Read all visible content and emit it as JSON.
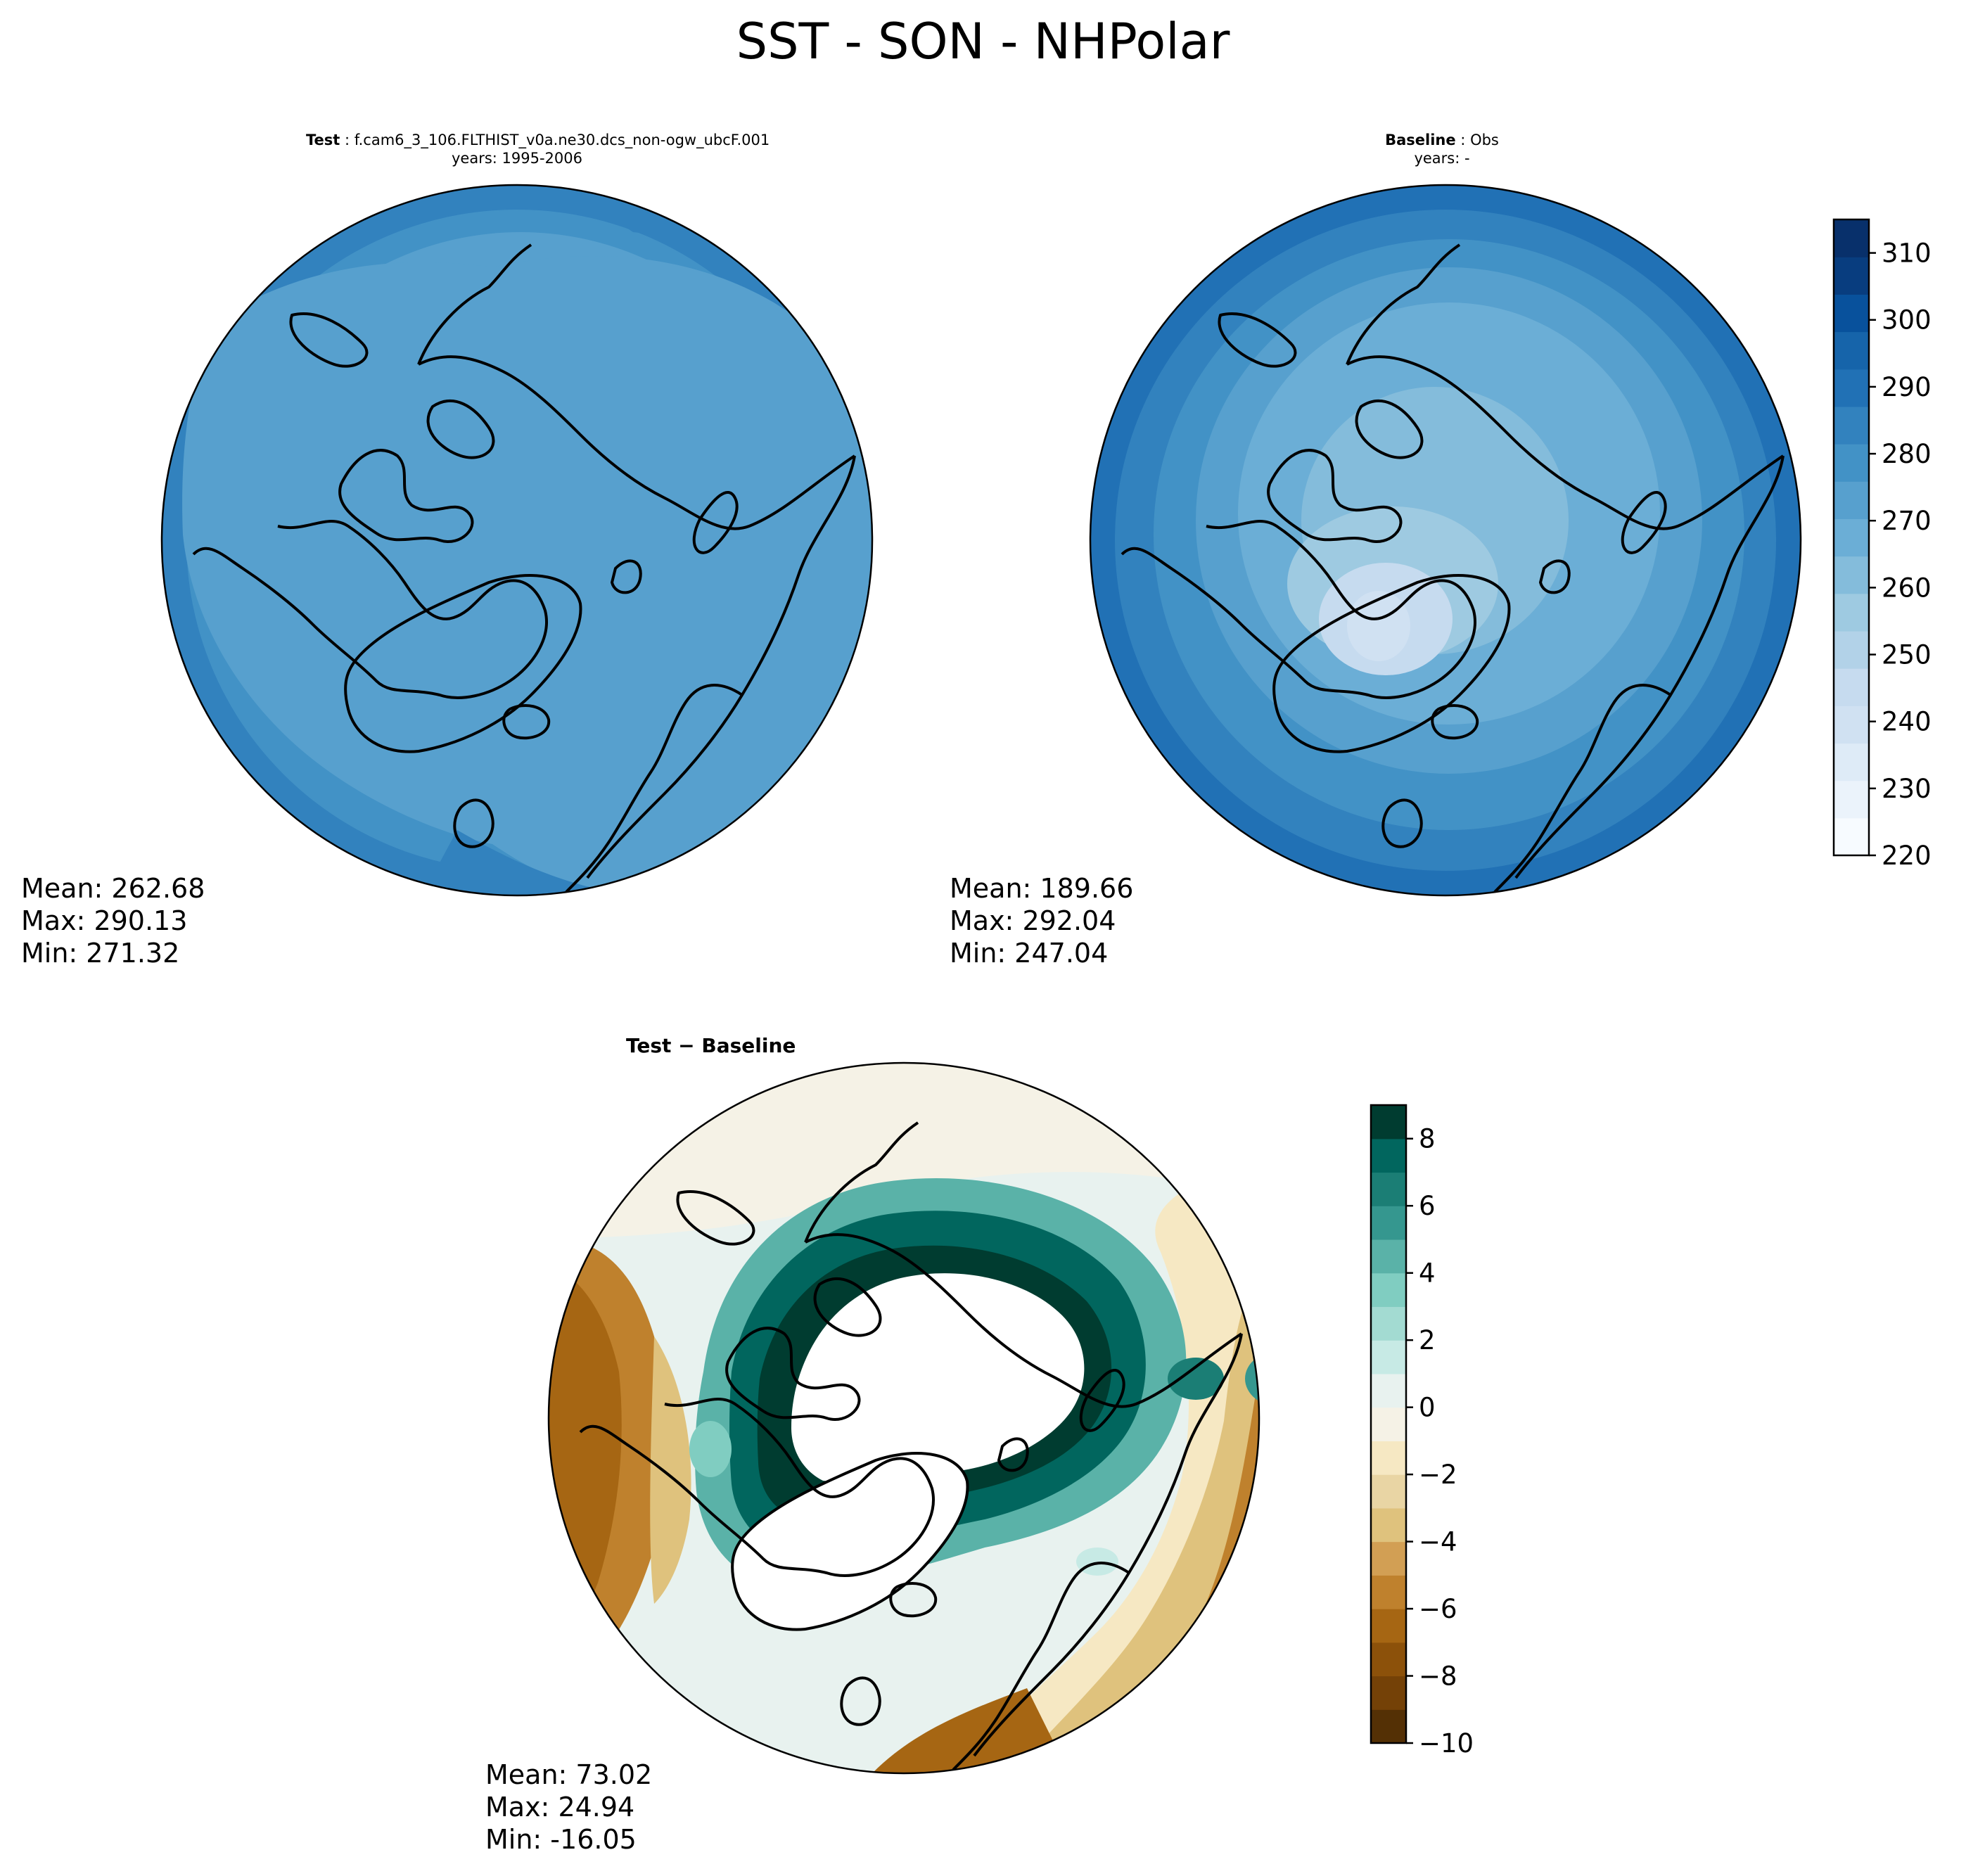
{
  "figure": {
    "title": "SST - SON - NHPolar"
  },
  "panels": {
    "test": {
      "label": "Test",
      "case": "f.cam6_3_106.FLTHIST_v0a.ne30.dcs_non-ogw_ubcF.001",
      "years": "years: 1995-2006",
      "mean": "Mean: 262.68",
      "max": "Max: 290.13",
      "min": "Min: 271.32"
    },
    "baseline": {
      "label": "Baseline",
      "case": "Obs",
      "years": "years: -",
      "mean": "Mean: 189.66",
      "max": "Max: 292.04",
      "min": "Min: 247.04"
    },
    "diff": {
      "title": "Test − Baseline",
      "mean": "Mean: 73.02",
      "max": "Max: 24.94",
      "min": "Min: -16.05"
    }
  },
  "colorbars": {
    "abs": {
      "ticks": [
        "220",
        "230",
        "240",
        "250",
        "260",
        "270",
        "280",
        "290",
        "300",
        "310"
      ],
      "colors": [
        "#f7fbff",
        "#ebf3fb",
        "#deebf7",
        "#d0e1f2",
        "#c6dbef",
        "#b2d2e8",
        "#9ecae1",
        "#84bcdb",
        "#6baed6",
        "#57a0ce",
        "#4292c6",
        "#3282be",
        "#2171b5",
        "#1664aa",
        "#08519c",
        "#083d7f",
        "#08306b"
      ]
    },
    "diff": {
      "ticks": [
        "−10",
        "−8",
        "−6",
        "−4",
        "−2",
        "0",
        "2",
        "4",
        "6",
        "8"
      ],
      "colors": [
        "#543005",
        "#744107",
        "#8c510a",
        "#a66613",
        "#bf812d",
        "#d29f54",
        "#dfc27d",
        "#e9d5a4",
        "#f6e8c3",
        "#f5f2e6",
        "#e8f2ef",
        "#c7eae5",
        "#a3dbd2",
        "#80cdc1",
        "#5ab2a8",
        "#35978f",
        "#1b7e75",
        "#01665e",
        "#003c30"
      ]
    }
  },
  "chart_data": [
    {
      "type": "heatmap",
      "projection": "north polar stereographic",
      "title": "Test : f.cam6_3_106.FLTHIST_v0a.ne30.dcs_non-ogw_ubcF.001",
      "subtitle": "years: 1995-2006",
      "colorbar_range": [
        220,
        315
      ],
      "colorbar_ticks": [
        220,
        230,
        240,
        250,
        260,
        270,
        280,
        290,
        300,
        310
      ],
      "stats": {
        "mean": 262.68,
        "max": 290.13,
        "min": 271.32
      }
    },
    {
      "type": "heatmap",
      "projection": "north polar stereographic",
      "title": "Baseline : Obs",
      "subtitle": "years: -",
      "colorbar_range": [
        220,
        315
      ],
      "colorbar_ticks": [
        220,
        230,
        240,
        250,
        260,
        270,
        280,
        290,
        300,
        310
      ],
      "stats": {
        "mean": 189.66,
        "max": 292.04,
        "min": 247.04
      }
    },
    {
      "type": "heatmap",
      "projection": "north polar stereographic",
      "title": "Test − Baseline",
      "colorbar_range": [
        -10,
        9
      ],
      "colorbar_ticks": [
        -10,
        -8,
        -6,
        -4,
        -2,
        0,
        2,
        4,
        6,
        8
      ],
      "stats": {
        "mean": 73.02,
        "max": 24.94,
        "min": -16.05
      }
    }
  ]
}
